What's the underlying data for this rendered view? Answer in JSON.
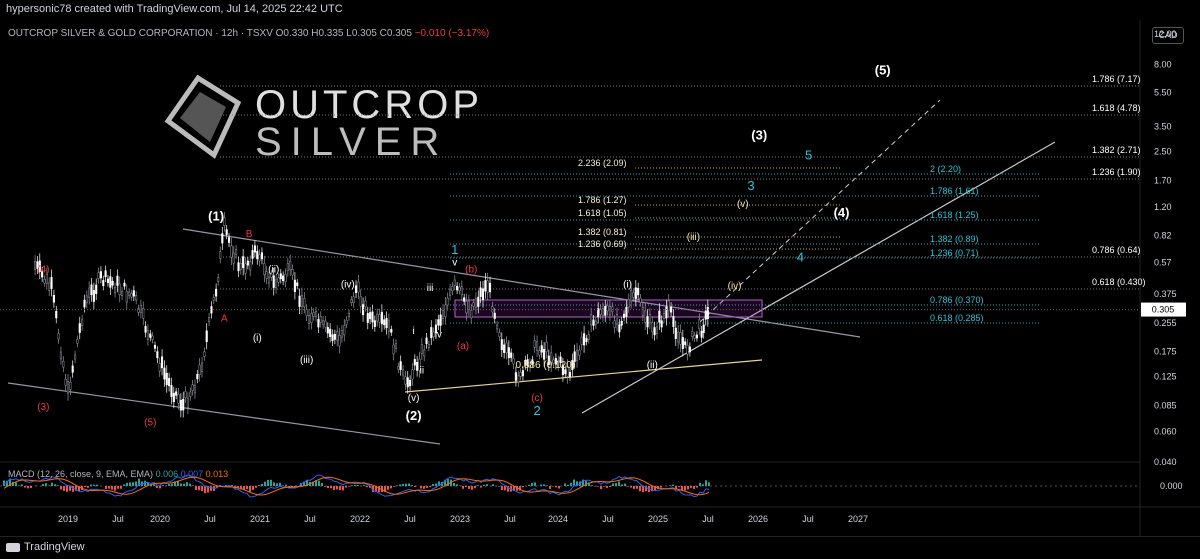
{
  "header": {
    "attribution": "hypersonic78 created with TradingView.com, Jul 14, 2025 22:42 UTC"
  },
  "symbol_bar": {
    "name": "OUTCROP SILVER & GOLD CORPORATION · 12h · TSXV",
    "open": "O0.330",
    "high": "H0.335",
    "low": "L0.305",
    "close": "C0.305",
    "change": "−0.010 (−3.17%)"
  },
  "currency_label": "CAD",
  "logo": {
    "line1": "OUTCROP",
    "line2": "SILVER"
  },
  "footer": {
    "brand": "TradingView"
  },
  "macd": {
    "label": "MACD (12, 26, close, 9, EMA, EMA)",
    "v1": "0.006",
    "v2": "0.007",
    "v3": "0.013",
    "axis": "0.000"
  },
  "colors": {
    "up": "#ffffff",
    "down": "#9598a1",
    "red_label": "#f23645",
    "cyan_label": "#26c6da",
    "yellow_label": "#f5e6a8",
    "macd_line": "#2962ff",
    "signal_line": "#ff6d00",
    "hist_up": "#26a69a",
    "hist_down": "#ef5350"
  },
  "chart_data": {
    "type": "line",
    "scale": "log",
    "ylim": [
      0.04,
      12.0
    ],
    "x_ticks": [
      "2019",
      "Jul",
      "2020",
      "Jul",
      "2021",
      "Jul",
      "2022",
      "Jul",
      "2023",
      "Jul",
      "2024",
      "Jul",
      "2025",
      "Jul",
      "2026",
      "Jul",
      "2027"
    ],
    "y_ticks": [
      "12.00",
      "8.00",
      "5.50",
      "3.50",
      "2.50",
      "1.70",
      "1.20",
      "0.82",
      "0.57",
      "0.375",
      "0.255",
      "0.175",
      "0.125",
      "0.085",
      "0.060",
      "0.040"
    ],
    "last_price": "0.305",
    "series": [
      {
        "x": [
          "2018-09",
          "2018-11",
          "2019-01",
          "2019-03",
          "2019-05",
          "2019-07",
          "2019-09",
          "2019-11",
          "2020-01",
          "2020-03",
          "2020-05",
          "2020-07",
          "2020-08",
          "2020-10",
          "2020-12",
          "2021-02",
          "2021-04",
          "2021-06",
          "2021-08",
          "2021-10",
          "2021-12",
          "2022-02",
          "2022-04",
          "2022-06",
          "2022-08",
          "2022-10",
          "2022-12",
          "2023-02",
          "2023-04",
          "2023-06",
          "2023-08",
          "2023-10",
          "2023-12",
          "2024-02",
          "2024-04",
          "2024-06",
          "2024-08",
          "2024-10",
          "2024-12",
          "2025-02",
          "2025-04",
          "2025-06",
          "2025-07"
        ],
        "values": [
          0.55,
          0.4,
          0.1,
          0.33,
          0.46,
          0.42,
          0.36,
          0.21,
          0.12,
          0.085,
          0.13,
          0.4,
          0.9,
          0.52,
          0.66,
          0.43,
          0.5,
          0.3,
          0.24,
          0.2,
          0.4,
          0.26,
          0.24,
          0.11,
          0.17,
          0.26,
          0.41,
          0.31,
          0.43,
          0.18,
          0.12,
          0.19,
          0.16,
          0.13,
          0.22,
          0.31,
          0.26,
          0.38,
          0.23,
          0.3,
          0.18,
          0.24,
          0.305
        ]
      }
    ],
    "wave_labels": [
      {
        "text": "(1)",
        "x": "2020-07",
        "y": 1.0,
        "color": "white"
      },
      {
        "text": "(2)",
        "x": "2022-07",
        "y": 0.07,
        "color": "white"
      },
      {
        "text": "(3)",
        "x": "2026-01",
        "y": 2.95,
        "color": "white"
      },
      {
        "text": "(4)",
        "x": "2026-11",
        "y": 1.05,
        "color": "white"
      },
      {
        "text": "(5)",
        "x": "2027-04",
        "y": 7.0,
        "color": "white"
      },
      {
        "text": "(3)",
        "x": "2018-10",
        "y": 0.08,
        "color": "red"
      },
      {
        "text": "(4)",
        "x": "2018-10",
        "y": 0.5,
        "color": "red"
      },
      {
        "text": "(5)",
        "x": "2019-11",
        "y": 0.065,
        "color": "red"
      },
      {
        "text": "A",
        "x": "2020-08",
        "y": 0.26,
        "color": "red"
      },
      {
        "text": "B",
        "x": "2020-11",
        "y": 0.8,
        "color": "red"
      },
      {
        "text": "(a)",
        "x": "2023-01",
        "y": 0.18,
        "color": "red"
      },
      {
        "text": "(b)",
        "x": "2023-02",
        "y": 0.5,
        "color": "red"
      },
      {
        "text": "(c)",
        "x": "2023-10",
        "y": 0.09,
        "color": "red"
      },
      {
        "text": "1",
        "x": "2022-12",
        "y": 0.64,
        "color": "cyan"
      },
      {
        "text": "2",
        "x": "2023-10",
        "y": 0.075,
        "color": "cyan"
      },
      {
        "text": "3",
        "x": "2025-12",
        "y": 1.5,
        "color": "cyan"
      },
      {
        "text": "4",
        "x": "2026-06",
        "y": 0.58,
        "color": "cyan"
      },
      {
        "text": "5",
        "x": "2026-07",
        "y": 2.25,
        "color": "cyan"
      },
      {
        "text": "(i)",
        "x": "2020-12",
        "y": 0.2,
        "color": "white"
      },
      {
        "text": "(ii)",
        "x": "2021-02",
        "y": 0.5,
        "color": "white"
      },
      {
        "text": "(iii)",
        "x": "2021-06",
        "y": 0.15,
        "color": "white"
      },
      {
        "text": "(iv)",
        "x": "2021-11",
        "y": 0.41,
        "color": "white"
      },
      {
        "text": "(v)",
        "x": "2022-07",
        "y": 0.09,
        "color": "white"
      },
      {
        "text": "i",
        "x": "2022-07",
        "y": 0.22,
        "color": "white"
      },
      {
        "text": "ii",
        "x": "2022-08",
        "y": 0.13,
        "color": "white"
      },
      {
        "text": "iii",
        "x": "2022-09",
        "y": 0.39,
        "color": "white"
      },
      {
        "text": "iv",
        "x": "2022-10",
        "y": 0.21,
        "color": "white"
      },
      {
        "text": "v",
        "x": "2022-12",
        "y": 0.55,
        "color": "white"
      },
      {
        "text": "(i)",
        "x": "2024-09",
        "y": 0.41,
        "color": "white"
      },
      {
        "text": "(ii)",
        "x": "2024-12",
        "y": 0.14,
        "color": "white"
      },
      {
        "text": "(iii)",
        "x": "2025-05",
        "y": 0.77,
        "color": "yellow"
      },
      {
        "text": "(iv)",
        "x": "2025-10",
        "y": 0.4,
        "color": "yellow"
      },
      {
        "text": "(v)",
        "x": "2025-11",
        "y": 1.2,
        "color": "yellow"
      },
      {
        "text": "0.886 (0.120)",
        "x": "2023-11",
        "y": 0.14,
        "color": "yellow"
      }
    ],
    "fib_levels_white": [
      "1.786 (7.17)",
      "1.618 (4.78)",
      "1.382 (2.71)",
      "1.236 (1.90)",
      "0.786 (0.64)",
      "0.618 (0.430)"
    ],
    "fib_levels_cyan": [
      "2 (2.20)",
      "1.786 (1.61)",
      "1.618 (1.25)",
      "1.382 (0.89)",
      "1.236 (0.71)",
      "0.786 (0.370)",
      "0.618 (0.285)"
    ],
    "fib_levels_yellow": [
      "2.236 (2.09)",
      "1.786 (1.27)",
      "1.618 (1.05)",
      "1.382 (0.81)",
      "1.236 (0.69)"
    ]
  }
}
